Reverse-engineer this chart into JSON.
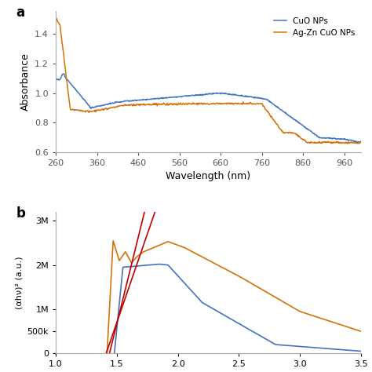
{
  "top_panel": {
    "label_a": "a",
    "xlabel": "Wavelength (nm)",
    "ylabel": "Absorbance",
    "xlim": [
      260,
      1000
    ],
    "ylim": [
      0.6,
      1.55
    ],
    "yticks": [
      0.6,
      0.8,
      1.0,
      1.2,
      1.4
    ],
    "xticks": [
      260,
      360,
      460,
      560,
      660,
      760,
      860,
      960
    ],
    "line1_color": "#4472c4",
    "line2_color": "#d4720a",
    "legend1": "CuO NPs",
    "legend2": "Ag-Zn CuO NPs"
  },
  "bottom_panel": {
    "label_b": "b",
    "ylabel": "(αhν)² (a.u.)",
    "xlim": [
      1.0,
      3.5
    ],
    "ylim": [
      0,
      3200000
    ],
    "xticks": [
      1.0,
      1.5,
      2.0,
      2.5,
      3.0,
      3.5
    ],
    "line1_color": "#4472c4",
    "line2_color": "#d4720a",
    "tangent_color": "#c00000"
  },
  "background_color": "#ffffff"
}
